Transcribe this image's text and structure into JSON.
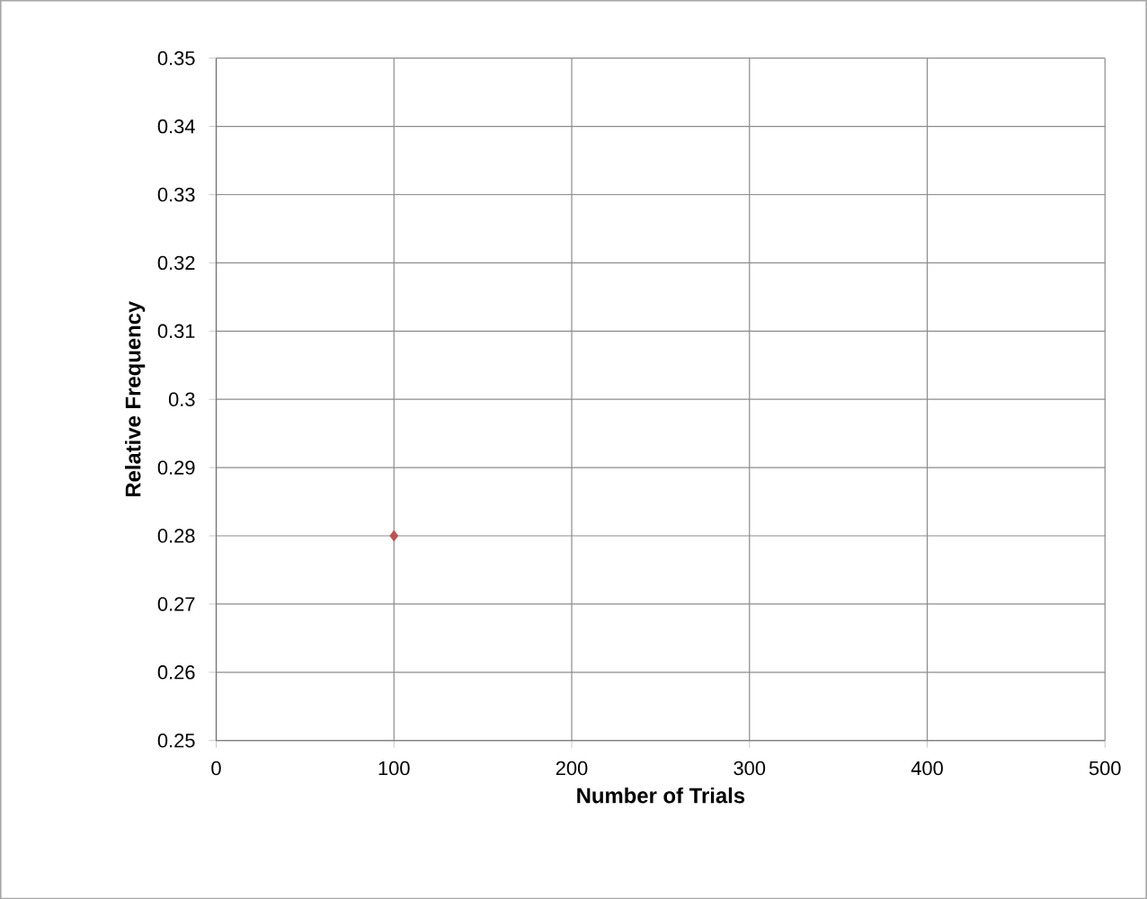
{
  "chart_data": {
    "type": "scatter",
    "xlabel": "Number of Trials",
    "ylabel": "Relative Frequency",
    "x": [
      100
    ],
    "values": [
      0.28
    ],
    "color": "#c0504d",
    "marker": "diamond",
    "xlim": [
      0,
      500
    ],
    "xticks": [
      0,
      100,
      200,
      300,
      400,
      500
    ],
    "ylim": [
      0.25,
      0.35
    ],
    "yticks": [
      0.25,
      0.26,
      0.27,
      0.28,
      0.29,
      0.3,
      0.31,
      0.32,
      0.33,
      0.34,
      0.35
    ],
    "grid": true
  }
}
